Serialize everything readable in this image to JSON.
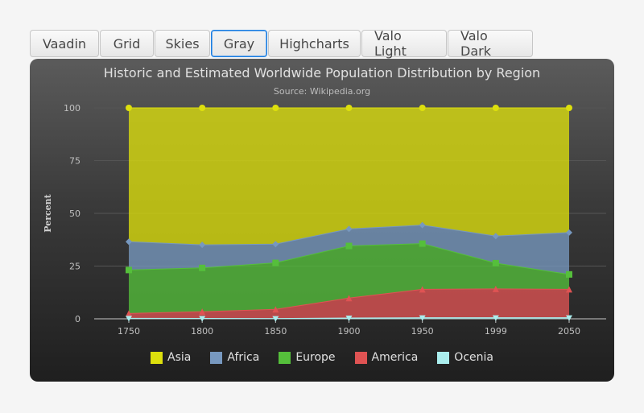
{
  "tabs": [
    {
      "label": "Vaadin",
      "active": false
    },
    {
      "label": "Grid",
      "active": false
    },
    {
      "label": "Skies",
      "active": false
    },
    {
      "label": "Gray",
      "active": true
    },
    {
      "label": "Highcharts",
      "active": false
    },
    {
      "label": "Valo Light",
      "active": false
    },
    {
      "label": "Valo Dark",
      "active": false
    }
  ],
  "chart_data": {
    "type": "area",
    "stacking": "percent",
    "title": "Historic and Estimated Worldwide Population Distribution by Region",
    "subtitle": "Source: Wikipedia.org",
    "xlabel": "",
    "ylabel": "Percent",
    "ylim": [
      0,
      100
    ],
    "yticks": [
      0,
      25,
      50,
      75,
      100
    ],
    "categories": [
      "1750",
      "1800",
      "1850",
      "1900",
      "1950",
      "1999",
      "2050"
    ],
    "series": [
      {
        "name": "Asia",
        "color": "#dddf0d",
        "values": [
          502,
          635,
          809,
          947,
          1402,
          3634,
          5268
        ]
      },
      {
        "name": "Africa",
        "color": "#7798bf",
        "values": [
          106,
          107,
          111,
          133,
          221,
          767,
          1766
        ]
      },
      {
        "name": "Europe",
        "color": "#55bf3b",
        "values": [
          163,
          203,
          276,
          408,
          547,
          729,
          628
        ]
      },
      {
        "name": "America",
        "color": "#df5353",
        "values": [
          18,
          31,
          54,
          156,
          339,
          818,
          1201
        ]
      },
      {
        "name": "Ocenia",
        "color": "#aaeeee",
        "values": [
          2,
          2,
          2,
          6,
          13,
          30,
          46
        ]
      }
    ]
  }
}
